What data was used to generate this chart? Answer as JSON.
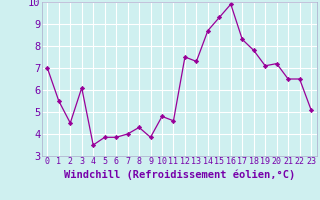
{
  "x": [
    0,
    1,
    2,
    3,
    4,
    5,
    6,
    7,
    8,
    9,
    10,
    11,
    12,
    13,
    14,
    15,
    16,
    17,
    18,
    19,
    20,
    21,
    22,
    23
  ],
  "y": [
    7.0,
    5.5,
    4.5,
    6.1,
    3.5,
    3.85,
    3.85,
    4.0,
    4.3,
    3.85,
    4.8,
    4.6,
    7.5,
    7.3,
    8.7,
    9.3,
    9.9,
    8.3,
    7.8,
    7.1,
    7.2,
    6.5,
    6.5,
    5.1
  ],
  "xlim": [
    -0.5,
    23.5
  ],
  "ylim": [
    3,
    10
  ],
  "yticks": [
    3,
    4,
    5,
    6,
    7,
    8,
    9,
    10
  ],
  "xticks": [
    0,
    1,
    2,
    3,
    4,
    5,
    6,
    7,
    8,
    9,
    10,
    11,
    12,
    13,
    14,
    15,
    16,
    17,
    18,
    19,
    20,
    21,
    22,
    23
  ],
  "xlabel": "Windchill (Refroidissement éolien,°C)",
  "line_color": "#990099",
  "marker_color": "#990099",
  "bg_color": "#cff0f0",
  "grid_color": "#ffffff",
  "xlabel_color": "#7700aa",
  "tick_color": "#7700aa",
  "xlabel_fontsize": 7.5,
  "ytick_fontsize": 7.5,
  "xtick_fontsize": 6.0
}
